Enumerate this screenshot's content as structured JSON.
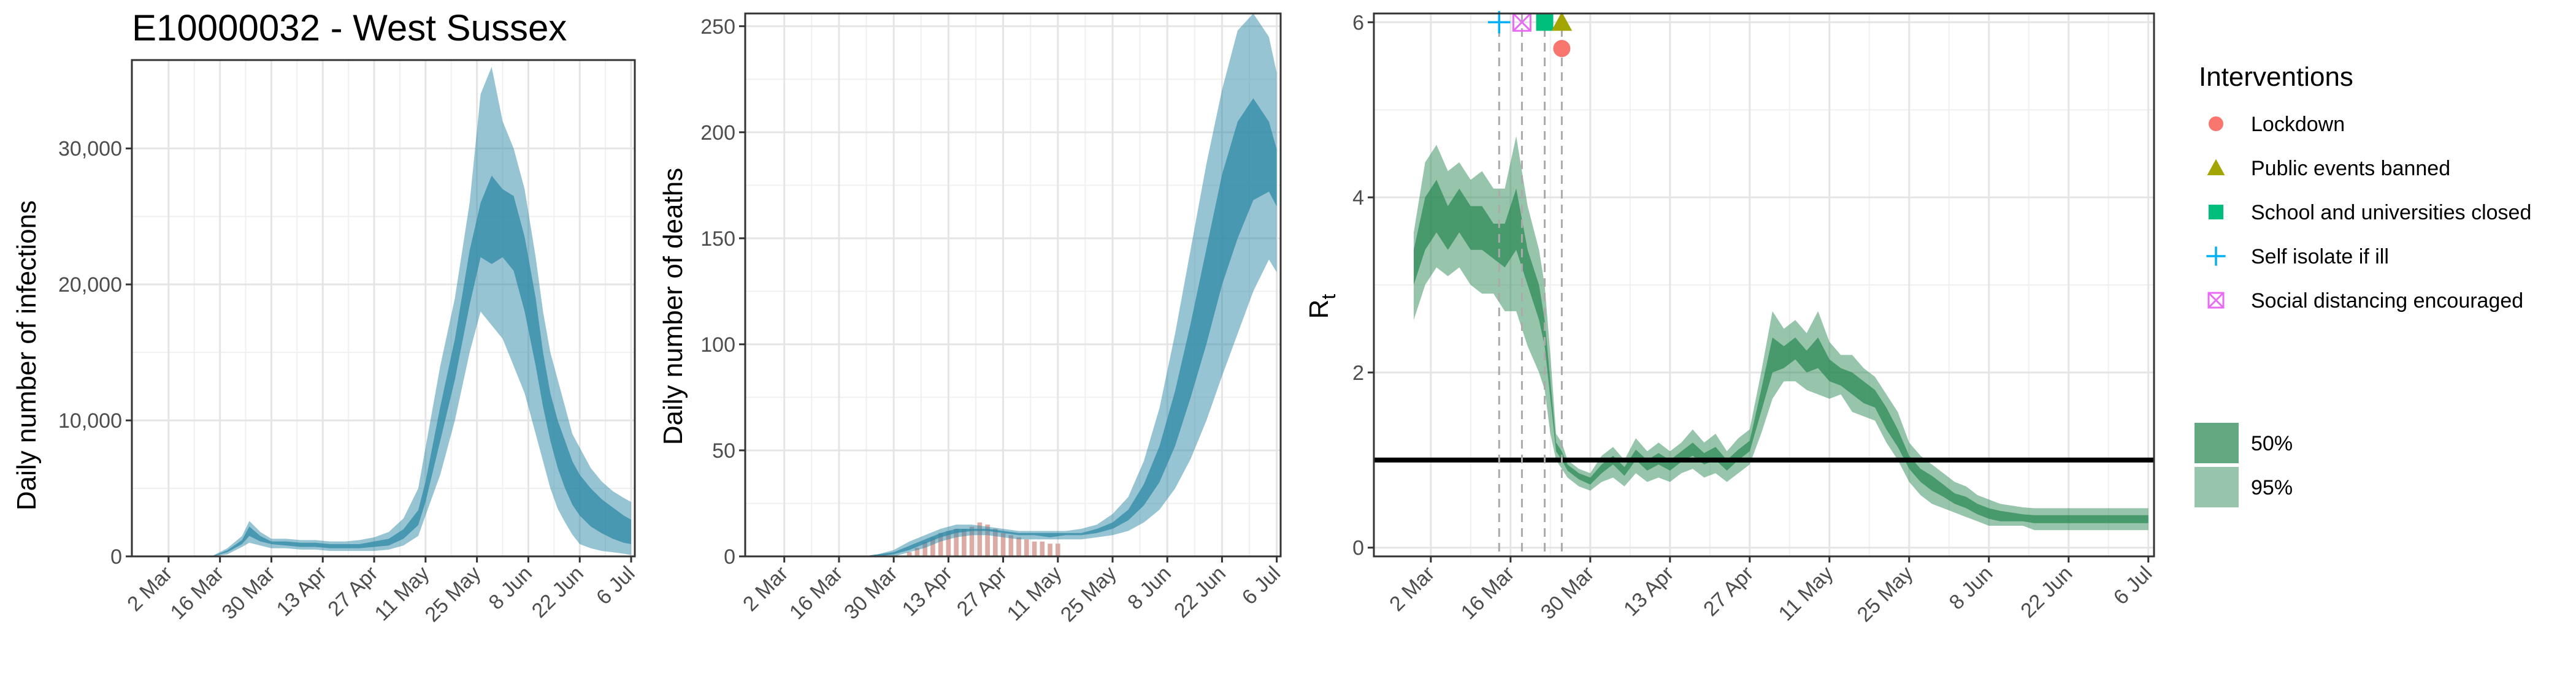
{
  "colors": {
    "infections_band": "#2f8aa7",
    "deaths_band": "#2f8aa7",
    "rt_band": "#2e8b57",
    "observed_bar": "#d7a29a",
    "lockdown": "#f8766d",
    "public_events": "#a3a500",
    "schools": "#00bf7d",
    "self_isolate": "#00b0f6",
    "social_distancing": "#e76bf3"
  },
  "chart_data": [
    {
      "type": "area",
      "title": "E10000032 - West Sussex",
      "ylabel": "Daily number of infections",
      "xlabel": "",
      "x_ticks": [
        "2 Mar",
        "16 Mar",
        "30 Mar",
        "13 Apr",
        "27 Apr",
        "11 May",
        "25 May",
        "8 Jun",
        "22 Jun",
        "6 Jul"
      ],
      "y_ticks": [
        "0",
        "10,000",
        "20,000",
        "30,000"
      ],
      "y_tick_values": [
        0,
        10000,
        20000,
        30000
      ],
      "ylim": [
        0,
        36500
      ],
      "x_day_range": [
        -10,
        127
      ],
      "series": [
        {
          "interval": "95%",
          "x": [
            12,
            16,
            20,
            22,
            25,
            28,
            32,
            36,
            40,
            44,
            48,
            52,
            56,
            60,
            64,
            68,
            70,
            74,
            78,
            82,
            85,
            88,
            91,
            94,
            97,
            100,
            102,
            104,
            106,
            108,
            110,
            112,
            115,
            118,
            121,
            124,
            126
          ],
          "low": [
            0,
            150,
            700,
            1000,
            800,
            600,
            600,
            500,
            500,
            400,
            400,
            400,
            400,
            500,
            800,
            1500,
            3000,
            6000,
            10000,
            15000,
            18000,
            17000,
            16000,
            14000,
            12000,
            9000,
            7000,
            5000,
            3500,
            2500,
            1600,
            900,
            600,
            400,
            300,
            200,
            100
          ],
          "high": [
            50,
            600,
            1500,
            2600,
            1800,
            1300,
            1300,
            1200,
            1200,
            1100,
            1100,
            1200,
            1400,
            1800,
            2800,
            5000,
            8000,
            14000,
            19000,
            26000,
            34000,
            36000,
            32000,
            30000,
            27000,
            22000,
            18000,
            15000,
            13000,
            11000,
            9000,
            8000,
            6500,
            5500,
            4800,
            4300,
            4000
          ]
        },
        {
          "interval": "50%",
          "x": [
            12,
            16,
            20,
            22,
            25,
            28,
            32,
            36,
            40,
            44,
            48,
            52,
            56,
            60,
            64,
            68,
            70,
            74,
            78,
            82,
            85,
            88,
            91,
            94,
            97,
            100,
            102,
            104,
            106,
            108,
            110,
            112,
            115,
            118,
            121,
            124,
            126
          ],
          "low": [
            0,
            300,
            900,
            1500,
            1100,
            900,
            800,
            700,
            700,
            600,
            600,
            600,
            700,
            800,
            1300,
            2300,
            4000,
            8500,
            13000,
            18500,
            22000,
            21500,
            22000,
            21000,
            18000,
            14000,
            11000,
            8500,
            6500,
            5000,
            3800,
            3000,
            2200,
            1700,
            1300,
            1000,
            900
          ],
          "high": [
            20,
            450,
            1200,
            2200,
            1500,
            1100,
            1100,
            1000,
            1000,
            900,
            900,
            900,
            1100,
            1300,
            2000,
            3400,
            5500,
            11000,
            16000,
            22500,
            26000,
            28000,
            27000,
            26500,
            23500,
            19000,
            15000,
            12000,
            10000,
            8500,
            7000,
            6000,
            5000,
            4200,
            3600,
            3000,
            2700
          ]
        }
      ]
    },
    {
      "type": "area",
      "ylabel": "Daily number of deaths",
      "xlabel": "",
      "x_ticks": [
        "2 Mar",
        "16 Mar",
        "30 Mar",
        "13 Apr",
        "27 Apr",
        "11 May",
        "25 May",
        "8 Jun",
        "22 Jun",
        "6 Jul"
      ],
      "y_ticks": [
        "0",
        "50",
        "100",
        "150",
        "200",
        "250"
      ],
      "y_tick_values": [
        0,
        50,
        100,
        150,
        200,
        250
      ],
      "ylim": [
        0,
        256
      ],
      "x_day_range": [
        -10,
        127
      ],
      "series": [
        {
          "interval": "95%",
          "x": [
            20,
            24,
            28,
            32,
            36,
            40,
            44,
            48,
            52,
            56,
            60,
            64,
            68,
            72,
            76,
            80,
            84,
            88,
            92,
            96,
            100,
            104,
            108,
            112,
            116,
            120,
            124,
            126
          ],
          "low": [
            0,
            0,
            0,
            2,
            4,
            7,
            9,
            10,
            10,
            9,
            8,
            8,
            8,
            8,
            8,
            9,
            10,
            12,
            16,
            22,
            32,
            46,
            64,
            85,
            105,
            125,
            140,
            134
          ],
          "high": [
            0,
            1,
            3,
            7,
            10,
            13,
            15,
            15,
            14,
            13,
            12,
            12,
            12,
            12,
            13,
            15,
            20,
            28,
            45,
            70,
            105,
            145,
            185,
            220,
            248,
            256,
            245,
            228
          ]
        },
        {
          "interval": "50%",
          "x": [
            20,
            24,
            28,
            32,
            36,
            40,
            44,
            48,
            52,
            56,
            60,
            64,
            68,
            72,
            76,
            80,
            84,
            88,
            92,
            96,
            100,
            104,
            108,
            112,
            116,
            120,
            124,
            126
          ],
          "low": [
            0,
            0,
            1,
            3,
            6,
            9,
            11,
            12,
            12,
            11,
            10,
            10,
            9,
            10,
            10,
            11,
            13,
            17,
            24,
            35,
            52,
            75,
            100,
            128,
            150,
            168,
            172,
            165
          ],
          "high": [
            0,
            1,
            2,
            5,
            8,
            11,
            13,
            13,
            13,
            12,
            11,
            11,
            11,
            11,
            11,
            13,
            16,
            22,
            34,
            52,
            78,
            110,
            145,
            180,
            205,
            216,
            205,
            192
          ]
        }
      ],
      "observed_bars": {
        "x": [
          32,
          34,
          36,
          38,
          40,
          42,
          44,
          46,
          48,
          50,
          52,
          54,
          56,
          58,
          60,
          62,
          64,
          66,
          68,
          70
        ],
        "values": [
          2,
          4,
          7,
          9,
          11,
          12,
          13,
          13,
          14,
          16,
          15,
          13,
          11,
          10,
          9,
          8,
          7,
          7,
          6,
          6
        ]
      }
    },
    {
      "type": "area",
      "ylabel": "R",
      "ylabel_subscript": "t",
      "xlabel": "",
      "x_ticks": [
        "2 Mar",
        "16 Mar",
        "30 Mar",
        "13 Apr",
        "27 Apr",
        "11 May",
        "25 May",
        "8 Jun",
        "22 Jun",
        "6 Jul"
      ],
      "y_ticks": [
        "0",
        "2",
        "4",
        "6"
      ],
      "y_tick_values": [
        0,
        2,
        4,
        6
      ],
      "ylim": [
        -0.1,
        6.1
      ],
      "x_day_range": [
        -10,
        127
      ],
      "reference_line": 1,
      "series": [
        {
          "interval": "95%",
          "x": [
            -3,
            -1,
            1,
            3,
            5,
            7,
            9,
            11,
            13,
            15,
            17,
            19,
            20,
            21,
            22,
            23,
            24,
            26,
            28,
            30,
            32,
            34,
            36,
            38,
            40,
            42,
            44,
            46,
            48,
            50,
            52,
            54,
            56,
            58,
            60,
            62,
            64,
            66,
            68,
            70,
            72,
            74,
            76,
            78,
            80,
            82,
            84,
            86,
            88,
            90,
            92,
            94,
            96,
            98,
            100,
            102,
            104,
            106,
            108,
            110,
            112,
            114,
            116,
            118,
            120,
            122,
            124,
            126
          ],
          "low": [
            2.6,
            3.0,
            3.2,
            3.1,
            3.2,
            3.0,
            2.9,
            2.9,
            2.7,
            2.7,
            2.3,
            2.0,
            1.8,
            1.3,
            1.0,
            0.9,
            0.8,
            0.7,
            0.65,
            0.75,
            0.8,
            0.7,
            0.85,
            0.75,
            0.8,
            0.75,
            0.85,
            0.9,
            0.8,
            0.85,
            0.75,
            0.85,
            0.95,
            1.3,
            1.7,
            1.9,
            1.9,
            1.8,
            1.75,
            1.7,
            1.75,
            1.55,
            1.5,
            1.45,
            1.2,
            1.0,
            0.75,
            0.6,
            0.5,
            0.45,
            0.4,
            0.35,
            0.3,
            0.25,
            0.25,
            0.25,
            0.25,
            0.2,
            0.2,
            0.2,
            0.2,
            0.2,
            0.2,
            0.2,
            0.2,
            0.2,
            0.2,
            0.2
          ],
          "high": [
            3.6,
            4.4,
            4.6,
            4.3,
            4.4,
            4.2,
            4.3,
            4.1,
            4.1,
            4.7,
            3.9,
            3.4,
            3.0,
            2.2,
            1.3,
            1.2,
            1.0,
            0.9,
            0.85,
            1.05,
            1.15,
            1.0,
            1.25,
            1.1,
            1.2,
            1.1,
            1.2,
            1.35,
            1.2,
            1.3,
            1.1,
            1.25,
            1.35,
            2.0,
            2.7,
            2.5,
            2.6,
            2.45,
            2.7,
            2.35,
            2.2,
            2.2,
            2.05,
            1.95,
            1.75,
            1.55,
            1.2,
            1.05,
            0.95,
            0.85,
            0.75,
            0.7,
            0.6,
            0.55,
            0.5,
            0.48,
            0.46,
            0.45,
            0.45,
            0.45,
            0.45,
            0.45,
            0.45,
            0.45,
            0.45,
            0.45,
            0.45,
            0.45
          ]
        },
        {
          "interval": "50%",
          "x": [
            -3,
            -1,
            1,
            3,
            5,
            7,
            9,
            11,
            13,
            15,
            17,
            19,
            20,
            21,
            22,
            23,
            24,
            26,
            28,
            30,
            32,
            34,
            36,
            38,
            40,
            42,
            44,
            46,
            48,
            50,
            52,
            54,
            56,
            58,
            60,
            62,
            64,
            66,
            68,
            70,
            72,
            74,
            76,
            78,
            80,
            82,
            84,
            86,
            88,
            90,
            92,
            94,
            96,
            98,
            100,
            102,
            104,
            106,
            108,
            110,
            112,
            114,
            116,
            118,
            120,
            122,
            124,
            126
          ],
          "low": [
            3.0,
            3.4,
            3.6,
            3.4,
            3.6,
            3.4,
            3.4,
            3.3,
            3.2,
            3.4,
            3.0,
            2.6,
            2.3,
            1.7,
            1.1,
            1.0,
            0.88,
            0.78,
            0.72,
            0.85,
            0.95,
            0.82,
            1.0,
            0.88,
            0.95,
            0.88,
            0.98,
            1.05,
            0.95,
            1.0,
            0.88,
            1.0,
            1.1,
            1.55,
            2.0,
            2.05,
            2.15,
            2.0,
            2.05,
            1.9,
            1.85,
            1.75,
            1.65,
            1.6,
            1.35,
            1.15,
            0.9,
            0.75,
            0.65,
            0.58,
            0.5,
            0.45,
            0.38,
            0.33,
            0.3,
            0.3,
            0.3,
            0.28,
            0.28,
            0.28,
            0.28,
            0.28,
            0.28,
            0.28,
            0.28,
            0.28,
            0.28,
            0.28
          ],
          "high": [
            3.4,
            4.0,
            4.2,
            3.9,
            4.1,
            3.9,
            3.9,
            3.7,
            3.7,
            4.1,
            3.4,
            3.0,
            2.6,
            1.9,
            1.2,
            1.1,
            0.95,
            0.85,
            0.8,
            0.95,
            1.05,
            0.92,
            1.12,
            1.0,
            1.08,
            1.0,
            1.1,
            1.2,
            1.08,
            1.15,
            1.0,
            1.12,
            1.22,
            1.8,
            2.4,
            2.3,
            2.4,
            2.25,
            2.4,
            2.15,
            2.05,
            2.0,
            1.9,
            1.8,
            1.6,
            1.35,
            1.05,
            0.9,
            0.82,
            0.72,
            0.62,
            0.58,
            0.5,
            0.45,
            0.42,
            0.4,
            0.38,
            0.37,
            0.37,
            0.37,
            0.37,
            0.37,
            0.37,
            0.37,
            0.37,
            0.37,
            0.37,
            0.37
          ]
        }
      ],
      "interventions": [
        {
          "name": "Self isolate if ill",
          "day": 12,
          "marker": "plus",
          "color_key": "self_isolate"
        },
        {
          "name": "Social distancing encouraged",
          "day": 16,
          "marker": "boxx",
          "color_key": "social_distancing"
        },
        {
          "name": "School and universities closed",
          "day": 20,
          "marker": "square",
          "color_key": "schools"
        },
        {
          "name": "Public events banned",
          "day": 23,
          "marker": "triangle",
          "color_key": "public_events"
        },
        {
          "name": "Lockdown",
          "day": 23,
          "marker": "circle",
          "color_key": "lockdown"
        }
      ]
    }
  ],
  "legend": {
    "title": "Interventions",
    "items": [
      {
        "label": "Lockdown",
        "marker": "circle",
        "color_key": "lockdown"
      },
      {
        "label": "Public events banned",
        "marker": "triangle",
        "color_key": "public_events"
      },
      {
        "label": "School and universities closed",
        "marker": "square",
        "color_key": "schools"
      },
      {
        "label": "Self isolate if ill",
        "marker": "plus",
        "color_key": "self_isolate"
      },
      {
        "label": "Social distancing encouraged",
        "marker": "boxx",
        "color_key": "social_distancing"
      }
    ],
    "bands": [
      {
        "label": "50%"
      },
      {
        "label": "95%"
      }
    ]
  }
}
